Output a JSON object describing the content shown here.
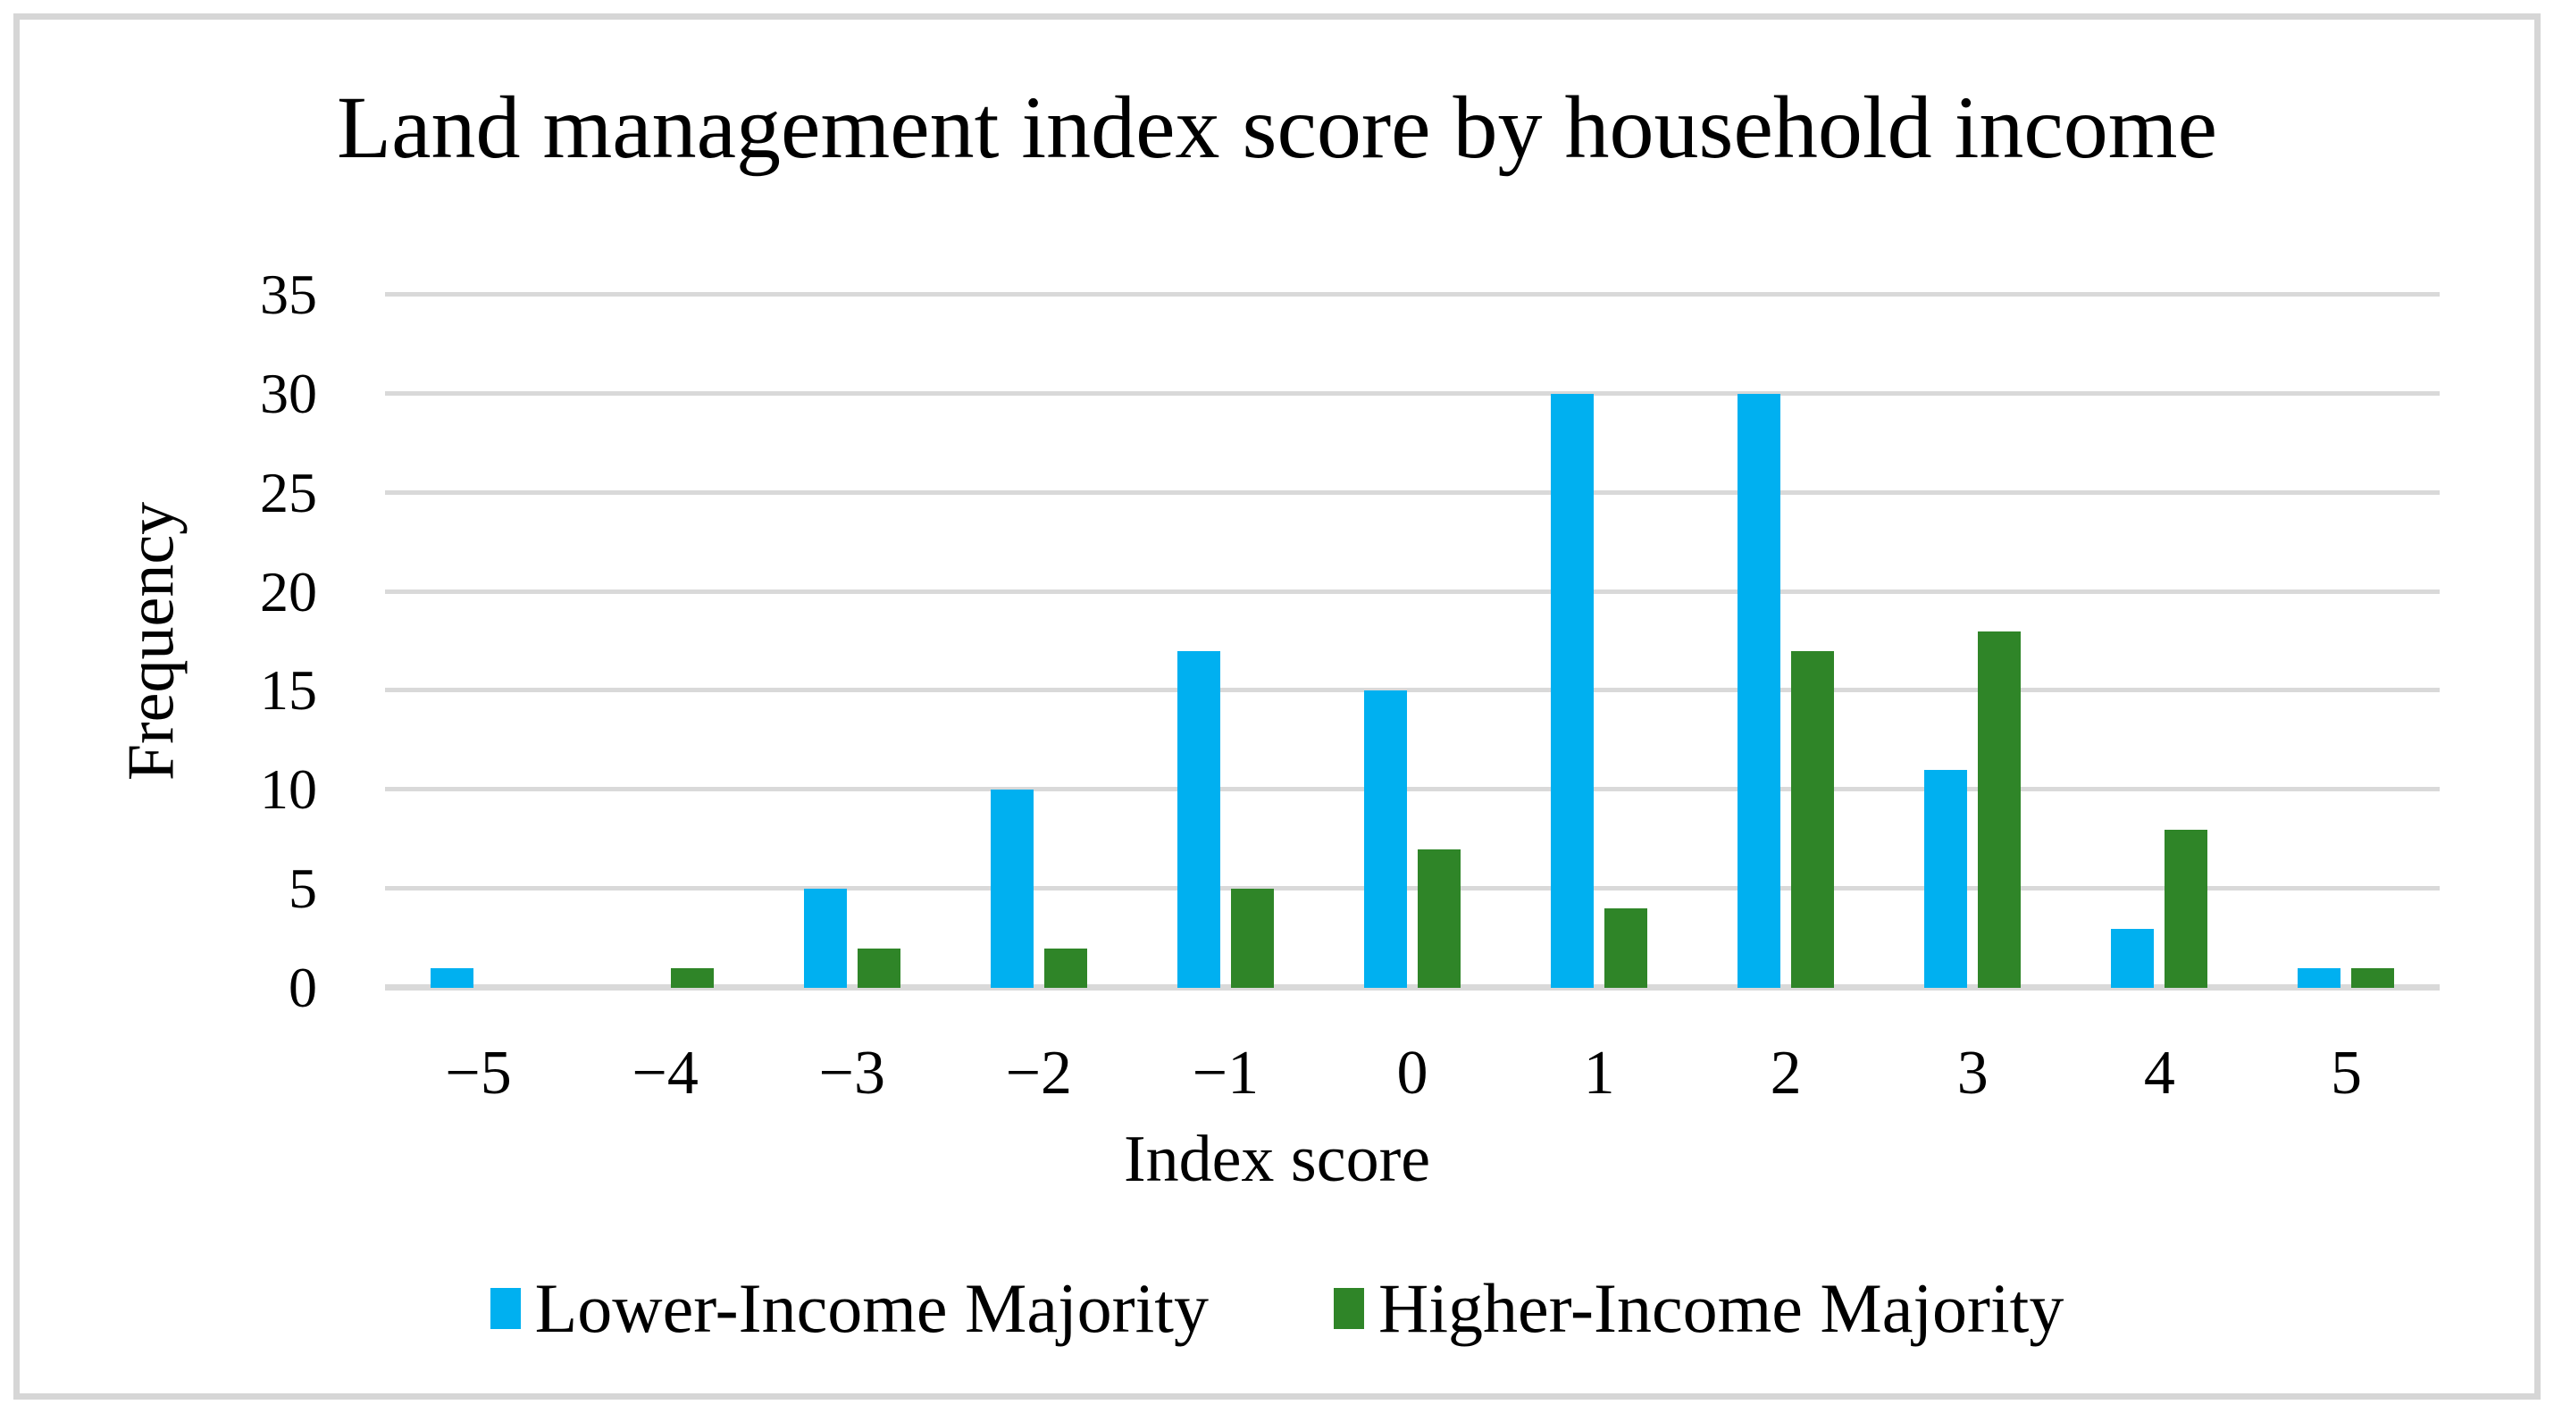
{
  "chart_data": {
    "type": "bar",
    "title": "Land management index score by household income",
    "xlabel": "Index score",
    "ylabel": "Frequency",
    "categories": [
      "−5",
      "−4",
      "−3",
      "−2",
      "−1",
      "0",
      "1",
      "2",
      "3",
      "4",
      "5"
    ],
    "series": [
      {
        "name": "Lower-Income Majority",
        "color": "#00B0F0",
        "values": [
          1,
          0,
          5,
          10,
          17,
          15,
          30,
          30,
          11,
          3,
          1
        ]
      },
      {
        "name": "Higher-Income Majority",
        "color": "#2F8528",
        "values": [
          0,
          1,
          2,
          2,
          5,
          7,
          4,
          17,
          18,
          8,
          1
        ]
      }
    ],
    "ylim": [
      0,
      35
    ],
    "y_ticks": [
      0,
      5,
      10,
      15,
      20,
      25,
      30,
      35
    ],
    "grid": "horizontal-only",
    "legend_position": "bottom",
    "colors": {
      "gridline": "#D9D9D9",
      "axis_line": "#D9D9D9",
      "chart_border": "#D6D6D6",
      "text": "#000000",
      "background": "#FFFFFF"
    }
  }
}
